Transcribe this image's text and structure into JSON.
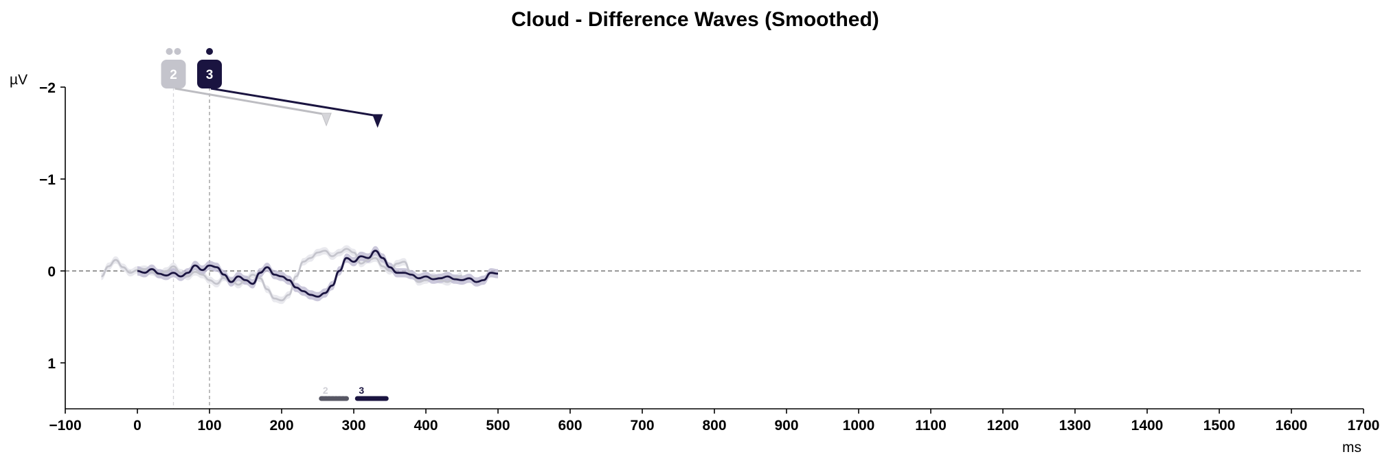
{
  "chart_data": {
    "type": "line",
    "title": "Cloud - Difference Waves (Smoothed)",
    "xlabel": "ms",
    "ylabel": "µV",
    "xlim": [
      -100,
      1700
    ],
    "ylim": [
      1.5,
      -2
    ],
    "y_inverted": true,
    "x_ticks": [
      -100,
      0,
      100,
      200,
      300,
      400,
      500,
      600,
      700,
      800,
      900,
      1000,
      1100,
      1200,
      1300,
      1400,
      1500,
      1600,
      1700
    ],
    "y_ticks": [
      -2,
      -1,
      0,
      1
    ],
    "x_tick_labels": [
      "−100",
      "0",
      "100",
      "200",
      "300",
      "400",
      "500",
      "600",
      "700",
      "800",
      "900",
      "1000",
      "1100",
      "1200",
      "1300",
      "1400",
      "1500",
      "1600",
      "1700"
    ],
    "y_tick_labels": [
      "−2",
      "−1",
      "0",
      "1"
    ],
    "zero_line": true,
    "grid": false,
    "series": [
      {
        "name": "2",
        "color": "#c4c4cc",
        "marker_x": 50,
        "peak_x": 262,
        "x": [
          -50,
          -40,
          -30,
          -20,
          -10,
          0,
          10,
          20,
          30,
          40,
          50,
          60,
          70,
          80,
          90,
          100,
          110,
          120,
          130,
          140,
          150,
          160,
          170,
          180,
          190,
          200,
          210,
          220,
          230,
          240,
          250,
          260,
          270,
          280,
          290,
          300,
          310,
          320,
          330,
          340,
          350,
          360,
          370,
          380,
          390,
          400,
          410,
          420,
          430,
          440,
          450
        ],
        "values": [
          0.06,
          -0.05,
          -0.12,
          -0.04,
          0.02,
          -0.01,
          -0.02,
          0.01,
          0.04,
          0.0,
          -0.05,
          0.02,
          0.06,
          0.01,
          0.04,
          0.1,
          0.14,
          0.07,
          0.1,
          0.15,
          0.1,
          0.04,
          0.08,
          0.2,
          0.3,
          0.32,
          0.26,
          0.06,
          -0.1,
          -0.14,
          -0.2,
          -0.22,
          -0.16,
          -0.2,
          -0.24,
          -0.2,
          -0.08,
          -0.12,
          -0.14,
          -0.05,
          0.0,
          -0.08,
          -0.1,
          0.04,
          0.12,
          0.1,
          0.06,
          0.1,
          0.12,
          0.08,
          0.05
        ],
        "ci_halfwidth": 0.04
      },
      {
        "name": "3",
        "color": "#1a1440",
        "marker_x": 100,
        "peak_x": 333,
        "x": [
          0,
          10,
          20,
          30,
          40,
          50,
          60,
          70,
          80,
          90,
          100,
          110,
          120,
          130,
          140,
          150,
          160,
          170,
          180,
          190,
          200,
          210,
          220,
          230,
          240,
          250,
          260,
          270,
          280,
          290,
          300,
          310,
          320,
          330,
          340,
          350,
          360,
          370,
          380,
          390,
          400,
          410,
          420,
          430,
          440,
          450,
          460,
          470,
          480,
          490,
          500
        ],
        "values": [
          0.0,
          0.02,
          -0.02,
          0.03,
          0.05,
          0.02,
          0.06,
          0.02,
          -0.06,
          -0.01,
          -0.06,
          -0.04,
          0.04,
          0.12,
          0.06,
          0.1,
          0.14,
          0.02,
          -0.04,
          0.04,
          0.06,
          0.1,
          0.18,
          0.22,
          0.26,
          0.28,
          0.24,
          0.16,
          0.0,
          -0.14,
          -0.1,
          -0.16,
          -0.14,
          -0.22,
          -0.14,
          -0.04,
          0.02,
          0.02,
          0.04,
          0.08,
          0.06,
          0.09,
          0.08,
          0.06,
          0.09,
          0.1,
          0.08,
          0.12,
          0.1,
          0.02,
          0.03
        ],
        "ci_halfwidth": 0.05
      }
    ],
    "significance_bars": [
      {
        "label": "2",
        "x_start": 255,
        "x_end": 290,
        "color": "#3a3a4a"
      },
      {
        "label": "3",
        "x_start": 305,
        "x_end": 345,
        "color": "#1a1440"
      }
    ]
  }
}
